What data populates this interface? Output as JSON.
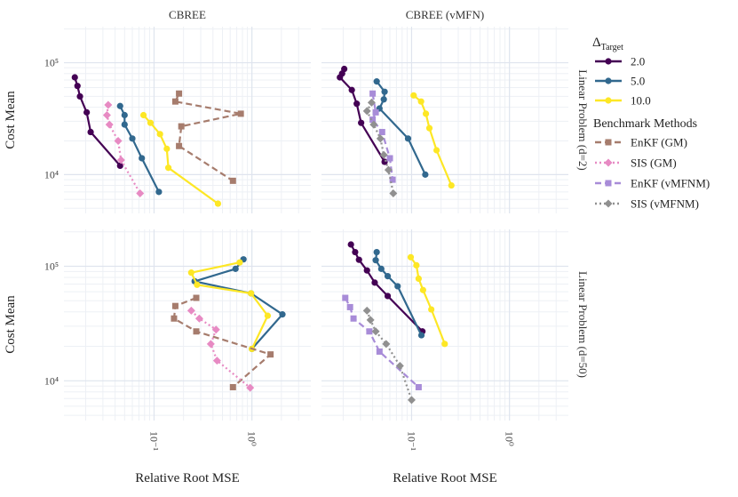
{
  "chart_data": {
    "type": "line",
    "xlabel": "Relative Root MSE",
    "ylabel": "Cost Mean",
    "x_scale": "log",
    "y_scale": "log",
    "xlim": [
      0.012,
      4.0
    ],
    "ylim": [
      4500,
      210000
    ],
    "x_ticks": [
      {
        "value": 0.1,
        "label": "10⁻¹"
      },
      {
        "value": 1,
        "label": "10⁰"
      }
    ],
    "y_ticks": [
      {
        "value": 10000,
        "label": "10⁴"
      },
      {
        "value": 100000,
        "label": "10⁵"
      }
    ],
    "grid": true,
    "columns": [
      "CBREE",
      "CBREE (vMFN)"
    ],
    "rows": [
      "Linear Problem (d=2)",
      "Linear Problem (d=50)"
    ],
    "legend": {
      "position": "right",
      "group1_title": "Δ",
      "group1_title_sub": "Target",
      "group1": [
        {
          "label": "2.0",
          "color": "#440154"
        },
        {
          "label": "5.0",
          "color": "#31688e"
        },
        {
          "label": "10.0",
          "color": "#fde725"
        }
      ],
      "group2_title": "Benchmark Methods",
      "group2": [
        {
          "label": "EnKF (GM)",
          "color": "#a67c6d",
          "dash": "dashed",
          "marker": "square"
        },
        {
          "label": "SIS (GM)",
          "color": "#e78ac3",
          "dash": "dotted",
          "marker": "diamond"
        },
        {
          "label": "EnKF (vMFNM)",
          "color": "#a88cd8",
          "dash": "dashed",
          "marker": "square"
        },
        {
          "label": "SIS (vMFNM)",
          "color": "#909090",
          "dash": "dotted",
          "marker": "diamond"
        }
      ]
    },
    "panels": [
      {
        "col": 0,
        "row": 0,
        "series": [
          {
            "name": "2.0",
            "color": "#440154",
            "dash": "solid",
            "marker": "circle",
            "points": [
              [
                0.0155,
                74000
              ],
              [
                0.0165,
                62000
              ],
              [
                0.0175,
                50000
              ],
              [
                0.0205,
                36000
              ],
              [
                0.0225,
                24000
              ],
              [
                0.045,
                12000
              ]
            ]
          },
          {
            "name": "5.0",
            "color": "#31688e",
            "dash": "solid",
            "marker": "circle",
            "points": [
              [
                0.045,
                41000
              ],
              [
                0.05,
                34000
              ],
              [
                0.05,
                28000
              ],
              [
                0.06,
                21000
              ],
              [
                0.075,
                14000
              ],
              [
                0.112,
                7000
              ]
            ]
          },
          {
            "name": "10.0",
            "color": "#fde725",
            "dash": "solid",
            "marker": "circle",
            "points": [
              [
                0.078,
                34000
              ],
              [
                0.092,
                29000
              ],
              [
                0.115,
                23000
              ],
              [
                0.135,
                17000
              ],
              [
                0.14,
                11500
              ],
              [
                0.45,
                5500
              ]
            ]
          },
          {
            "name": "EnKF (GM)",
            "color": "#a67c6d",
            "dash": "dashed",
            "marker": "square",
            "points": [
              [
                0.18,
                53000
              ],
              [
                0.165,
                45000
              ],
              [
                0.77,
                35000
              ],
              [
                0.19,
                27000
              ],
              [
                0.18,
                18000
              ],
              [
                0.64,
                8800
              ]
            ]
          },
          {
            "name": "SIS (GM)",
            "color": "#e78ac3",
            "dash": "dotted",
            "marker": "diamond",
            "points": [
              [
                0.034,
                42000
              ],
              [
                0.033,
                34000
              ],
              [
                0.035,
                28000
              ],
              [
                0.043,
                20000
              ],
              [
                0.046,
                13500
              ],
              [
                0.072,
                6800
              ]
            ]
          }
        ]
      },
      {
        "col": 1,
        "row": 0,
        "series": [
          {
            "name": "2.0",
            "color": "#440154",
            "dash": "solid",
            "marker": "circle",
            "points": [
              [
                0.0205,
                88000
              ],
              [
                0.0195,
                80000
              ],
              [
                0.0185,
                74000
              ],
              [
                0.0245,
                57000
              ],
              [
                0.0275,
                43000
              ],
              [
                0.0305,
                29000
              ],
              [
                0.053,
                13000
              ]
            ]
          },
          {
            "name": "5.0",
            "color": "#31688e",
            "dash": "solid",
            "marker": "circle",
            "points": [
              [
                0.044,
                68000
              ],
              [
                0.053,
                55000
              ],
              [
                0.052,
                47000
              ],
              [
                0.047,
                39000
              ],
              [
                0.092,
                21000
              ],
              [
                0.138,
                10000
              ]
            ]
          },
          {
            "name": "10.0",
            "color": "#fde725",
            "dash": "solid",
            "marker": "circle",
            "points": [
              [
                0.105,
                51000
              ],
              [
                0.125,
                45000
              ],
              [
                0.14,
                35000
              ],
              [
                0.152,
                26000
              ],
              [
                0.18,
                16500
              ],
              [
                0.255,
                8000
              ]
            ]
          },
          {
            "name": "EnKF (vMFNM)",
            "color": "#a88cd8",
            "dash": "dashed",
            "marker": "square",
            "points": [
              [
                0.04,
                53000
              ],
              [
                0.043,
                36000
              ],
              [
                0.04,
                31000
              ],
              [
                0.05,
                24000
              ],
              [
                0.06,
                14000
              ],
              [
                0.064,
                9000
              ]
            ]
          },
          {
            "name": "SIS (vMFNM)",
            "color": "#909090",
            "dash": "dotted",
            "marker": "diamond",
            "points": [
              [
                0.039,
                44000
              ],
              [
                0.035,
                37000
              ],
              [
                0.041,
                28000
              ],
              [
                0.048,
                21000
              ],
              [
                0.052,
                15000
              ],
              [
                0.058,
                11000
              ],
              [
                0.065,
                6800
              ]
            ]
          }
        ]
      },
      {
        "col": 0,
        "row": 1,
        "series": [
          {
            "name": "5.0",
            "color": "#31688e",
            "dash": "solid",
            "marker": "circle",
            "points": [
              [
                0.82,
                115000
              ],
              [
                0.68,
                95000
              ],
              [
                0.26,
                74000
              ],
              [
                0.98,
                58000
              ],
              [
                2.05,
                38000
              ],
              [
                1.0,
                19000
              ]
            ]
          },
          {
            "name": "10.0",
            "color": "#fde725",
            "dash": "solid",
            "marker": "circle",
            "points": [
              [
                0.75,
                108000
              ],
              [
                0.24,
                88000
              ],
              [
                0.275,
                69000
              ],
              [
                0.98,
                58000
              ],
              [
                1.45,
                37000
              ],
              [
                1.0,
                19000
              ]
            ]
          },
          {
            "name": "EnKF (GM)",
            "color": "#a67c6d",
            "dash": "dashed",
            "marker": "square",
            "points": [
              [
                0.27,
                53000
              ],
              [
                0.165,
                45000
              ],
              [
                0.16,
                35000
              ],
              [
                0.27,
                27000
              ],
              [
                1.55,
                17000
              ],
              [
                0.64,
                8800
              ]
            ]
          },
          {
            "name": "SIS (GM)",
            "color": "#e78ac3",
            "dash": "dotted",
            "marker": "diamond",
            "points": [
              [
                0.24,
                41000
              ],
              [
                0.29,
                35000
              ],
              [
                0.43,
                28000
              ],
              [
                0.38,
                21000
              ],
              [
                0.44,
                15000
              ],
              [
                0.96,
                8700
              ]
            ]
          }
        ]
      },
      {
        "col": 1,
        "row": 1,
        "series": [
          {
            "name": "2.0",
            "color": "#440154",
            "dash": "solid",
            "marker": "circle",
            "points": [
              [
                0.024,
                155000
              ],
              [
                0.0265,
                133000
              ],
              [
                0.029,
                114000
              ],
              [
                0.035,
                92000
              ],
              [
                0.042,
                72000
              ],
              [
                0.057,
                55000
              ],
              [
                0.129,
                27000
              ]
            ]
          },
          {
            "name": "5.0",
            "color": "#31688e",
            "dash": "solid",
            "marker": "circle",
            "points": [
              [
                0.044,
                133000
              ],
              [
                0.043,
                113000
              ],
              [
                0.049,
                95000
              ],
              [
                0.057,
                82000
              ],
              [
                0.072,
                67000
              ],
              [
                0.126,
                25000
              ]
            ]
          },
          {
            "name": "10.0",
            "color": "#fde725",
            "dash": "solid",
            "marker": "circle",
            "points": [
              [
                0.098,
                120000
              ],
              [
                0.112,
                102000
              ],
              [
                0.118,
                78000
              ],
              [
                0.131,
                62000
              ],
              [
                0.159,
                42000
              ],
              [
                0.218,
                21000
              ]
            ]
          },
          {
            "name": "EnKF (vMFNM)",
            "color": "#a88cd8",
            "dash": "dashed",
            "marker": "square",
            "points": [
              [
                0.021,
                53000
              ],
              [
                0.0235,
                44000
              ],
              [
                0.0255,
                35000
              ],
              [
                0.037,
                27000
              ],
              [
                0.047,
                18000
              ],
              [
                0.118,
                8800
              ]
            ]
          },
          {
            "name": "SIS (vMFNM)",
            "color": "#909090",
            "dash": "dotted",
            "marker": "diamond",
            "points": [
              [
                0.035,
                41000
              ],
              [
                0.038,
                34000
              ],
              [
                0.043,
                27000
              ],
              [
                0.055,
                21000
              ],
              [
                0.076,
                13500
              ],
              [
                0.1,
                6800
              ]
            ]
          }
        ]
      }
    ]
  }
}
